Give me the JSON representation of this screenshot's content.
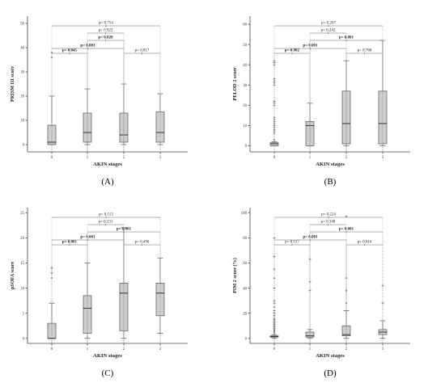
{
  "chart_data": [
    {
      "type": "box",
      "panel_label": "(A)",
      "xlabel": "AKIN stages",
      "ylabel": "PRISM III score",
      "categories": [
        "0",
        "1",
        "2",
        "3"
      ],
      "ylim": [
        -3,
        53
      ],
      "yticks": [
        0,
        10,
        20,
        30,
        40,
        50
      ],
      "boxes": [
        {
          "min": 0,
          "q1": 0,
          "median": 1,
          "q3": 8,
          "max": 20,
          "outliers": [
            36,
            38
          ]
        },
        {
          "min": 0,
          "q1": 1,
          "median": 5,
          "q3": 13,
          "max": 23,
          "outliers": []
        },
        {
          "min": 0,
          "q1": 1,
          "median": 4,
          "q3": 13,
          "max": 25,
          "outliers": []
        },
        {
          "min": 0,
          "q1": 1,
          "median": 5,
          "q3": 13.5,
          "max": 21,
          "outliers": []
        }
      ],
      "comparisons": [
        {
          "from": 0,
          "to": 1,
          "label": "p= 0.045",
          "bold": true,
          "level": 0
        },
        {
          "from": 2,
          "to": 3,
          "label": "p= 0.817",
          "bold": false,
          "level": 0
        },
        {
          "from": 0,
          "to": 2,
          "label": "p= 0.003",
          "bold": true,
          "level": 1
        },
        {
          "from": 1,
          "to": 2,
          "label": "p= 0.020",
          "bold": true,
          "level": 2
        },
        {
          "from": 1,
          "to": 2,
          "label": "p= 0.922",
          "bold": false,
          "level": 3
        },
        {
          "from": 0,
          "to": 3,
          "label": "p= 0.754",
          "bold": false,
          "level": 4
        }
      ]
    },
    {
      "type": "box",
      "panel_label": "(B)",
      "xlabel": "AKIN stages",
      "ylabel": "PELOD 2 score",
      "categories": [
        "0",
        "1",
        "2",
        "3"
      ],
      "ylim": [
        -3,
        64
      ],
      "yticks": [
        0,
        10,
        20,
        30,
        40,
        50,
        60
      ],
      "boxes": [
        {
          "min": 0,
          "q1": 0,
          "median": 1,
          "q3": 1.5,
          "max": 2,
          "outliers": [
            3,
            6,
            7,
            8,
            9,
            10,
            11,
            12,
            13,
            14,
            20,
            21,
            22,
            30,
            31,
            32,
            33,
            40,
            41,
            42
          ]
        },
        {
          "min": 0,
          "q1": 0,
          "median": 10,
          "q3": 12,
          "max": 21,
          "outliers": []
        },
        {
          "min": 0,
          "q1": 1,
          "median": 11,
          "q3": 27,
          "max": 42,
          "outliers": []
        },
        {
          "min": 0,
          "q1": 1,
          "median": 11,
          "q3": 27,
          "max": 52,
          "outliers": []
        }
      ],
      "comparisons": [
        {
          "from": 0,
          "to": 1,
          "label": "p= 0.002",
          "bold": true,
          "level": 0
        },
        {
          "from": 2,
          "to": 3,
          "label": "p= 0.768",
          "bold": false,
          "level": 0
        },
        {
          "from": 0,
          "to": 2,
          "label": "p= 0.001",
          "bold": true,
          "level": 1
        },
        {
          "from": 1,
          "to": 3,
          "label": "p= 0.001",
          "bold": true,
          "level": 2
        },
        {
          "from": 1,
          "to": 2,
          "label": "p= 0.242",
          "bold": false,
          "level": 3
        },
        {
          "from": 0,
          "to": 3,
          "label": "p= 0.267",
          "bold": false,
          "level": 4
        }
      ]
    },
    {
      "type": "box",
      "panel_label": "(C)",
      "xlabel": "AKIN stages",
      "ylabel": "pSOFA score",
      "categories": [
        "0",
        "1",
        "2",
        "3"
      ],
      "ylim": [
        -1,
        26
      ],
      "yticks": [
        0,
        5,
        10,
        15,
        20,
        25
      ],
      "boxes": [
        {
          "min": 0,
          "q1": 0,
          "median": 0,
          "q3": 3,
          "max": 7,
          "outliers": [
            12,
            13,
            14
          ]
        },
        {
          "min": 0,
          "q1": 1,
          "median": 6,
          "q3": 8.5,
          "max": 15,
          "outliers": []
        },
        {
          "min": 0,
          "q1": 1.5,
          "median": 9,
          "q3": 11,
          "max": 22,
          "outliers": []
        },
        {
          "min": 1,
          "q1": 4.5,
          "median": 9,
          "q3": 11,
          "max": 16,
          "outliers": []
        }
      ],
      "comparisons": [
        {
          "from": 0,
          "to": 1,
          "label": "p= 0.001",
          "bold": true,
          "level": 0
        },
        {
          "from": 2,
          "to": 3,
          "label": "p= 0.490",
          "bold": false,
          "level": 0
        },
        {
          "from": 0,
          "to": 2,
          "label": "p= 0.001",
          "bold": true,
          "level": 1
        },
        {
          "from": 1,
          "to": 3,
          "label": "p= 0.001",
          "bold": true,
          "level": 2
        },
        {
          "from": 1,
          "to": 2,
          "label": "p= 0.231",
          "bold": false,
          "level": 3
        },
        {
          "from": 0,
          "to": 3,
          "label": "p= 0.113",
          "bold": false,
          "level": 4
        }
      ]
    },
    {
      "type": "box",
      "panel_label": "(D)",
      "xlabel": "AKIN stages",
      "ylabel": "PIM 2 score (%)",
      "categories": [
        "0",
        "1",
        "2",
        "3"
      ],
      "ylim": [
        -4,
        104
      ],
      "yticks": [
        0,
        20,
        40,
        60,
        80,
        100
      ],
      "boxes": [
        {
          "min": 0,
          "q1": 1,
          "median": 1.5,
          "q3": 2,
          "max": 3,
          "outliers": [
            4,
            5,
            6,
            7,
            8,
            9,
            10,
            11,
            12,
            13,
            14,
            15,
            16,
            18,
            20,
            22,
            25,
            28,
            30,
            40,
            48,
            55,
            65,
            80
          ]
        },
        {
          "min": 0,
          "q1": 1,
          "median": 2,
          "q3": 5,
          "max": 7,
          "outliers": [
            38,
            45,
            63
          ]
        },
        {
          "min": 0,
          "q1": 2,
          "median": 3,
          "q3": 10,
          "max": 22,
          "outliers": [
            28,
            38,
            48,
            97
          ]
        },
        {
          "min": 0,
          "q1": 3,
          "median": 5,
          "q3": 7,
          "max": 14,
          "outliers": [
            28,
            42
          ]
        }
      ],
      "comparisons": [
        {
          "from": 0,
          "to": 1,
          "label": "p= 0.117",
          "bold": false,
          "level": 0
        },
        {
          "from": 2,
          "to": 3,
          "label": "p= 0.610",
          "bold": false,
          "level": 0
        },
        {
          "from": 0,
          "to": 2,
          "label": "p= 0.001",
          "bold": true,
          "level": 1
        },
        {
          "from": 1,
          "to": 3,
          "label": "p= 0.001",
          "bold": true,
          "level": 2
        },
        {
          "from": 1,
          "to": 2,
          "label": "p= 0.340",
          "bold": false,
          "level": 3
        },
        {
          "from": 0,
          "to": 3,
          "label": "p= 0.224",
          "bold": false,
          "level": 4
        }
      ]
    }
  ]
}
